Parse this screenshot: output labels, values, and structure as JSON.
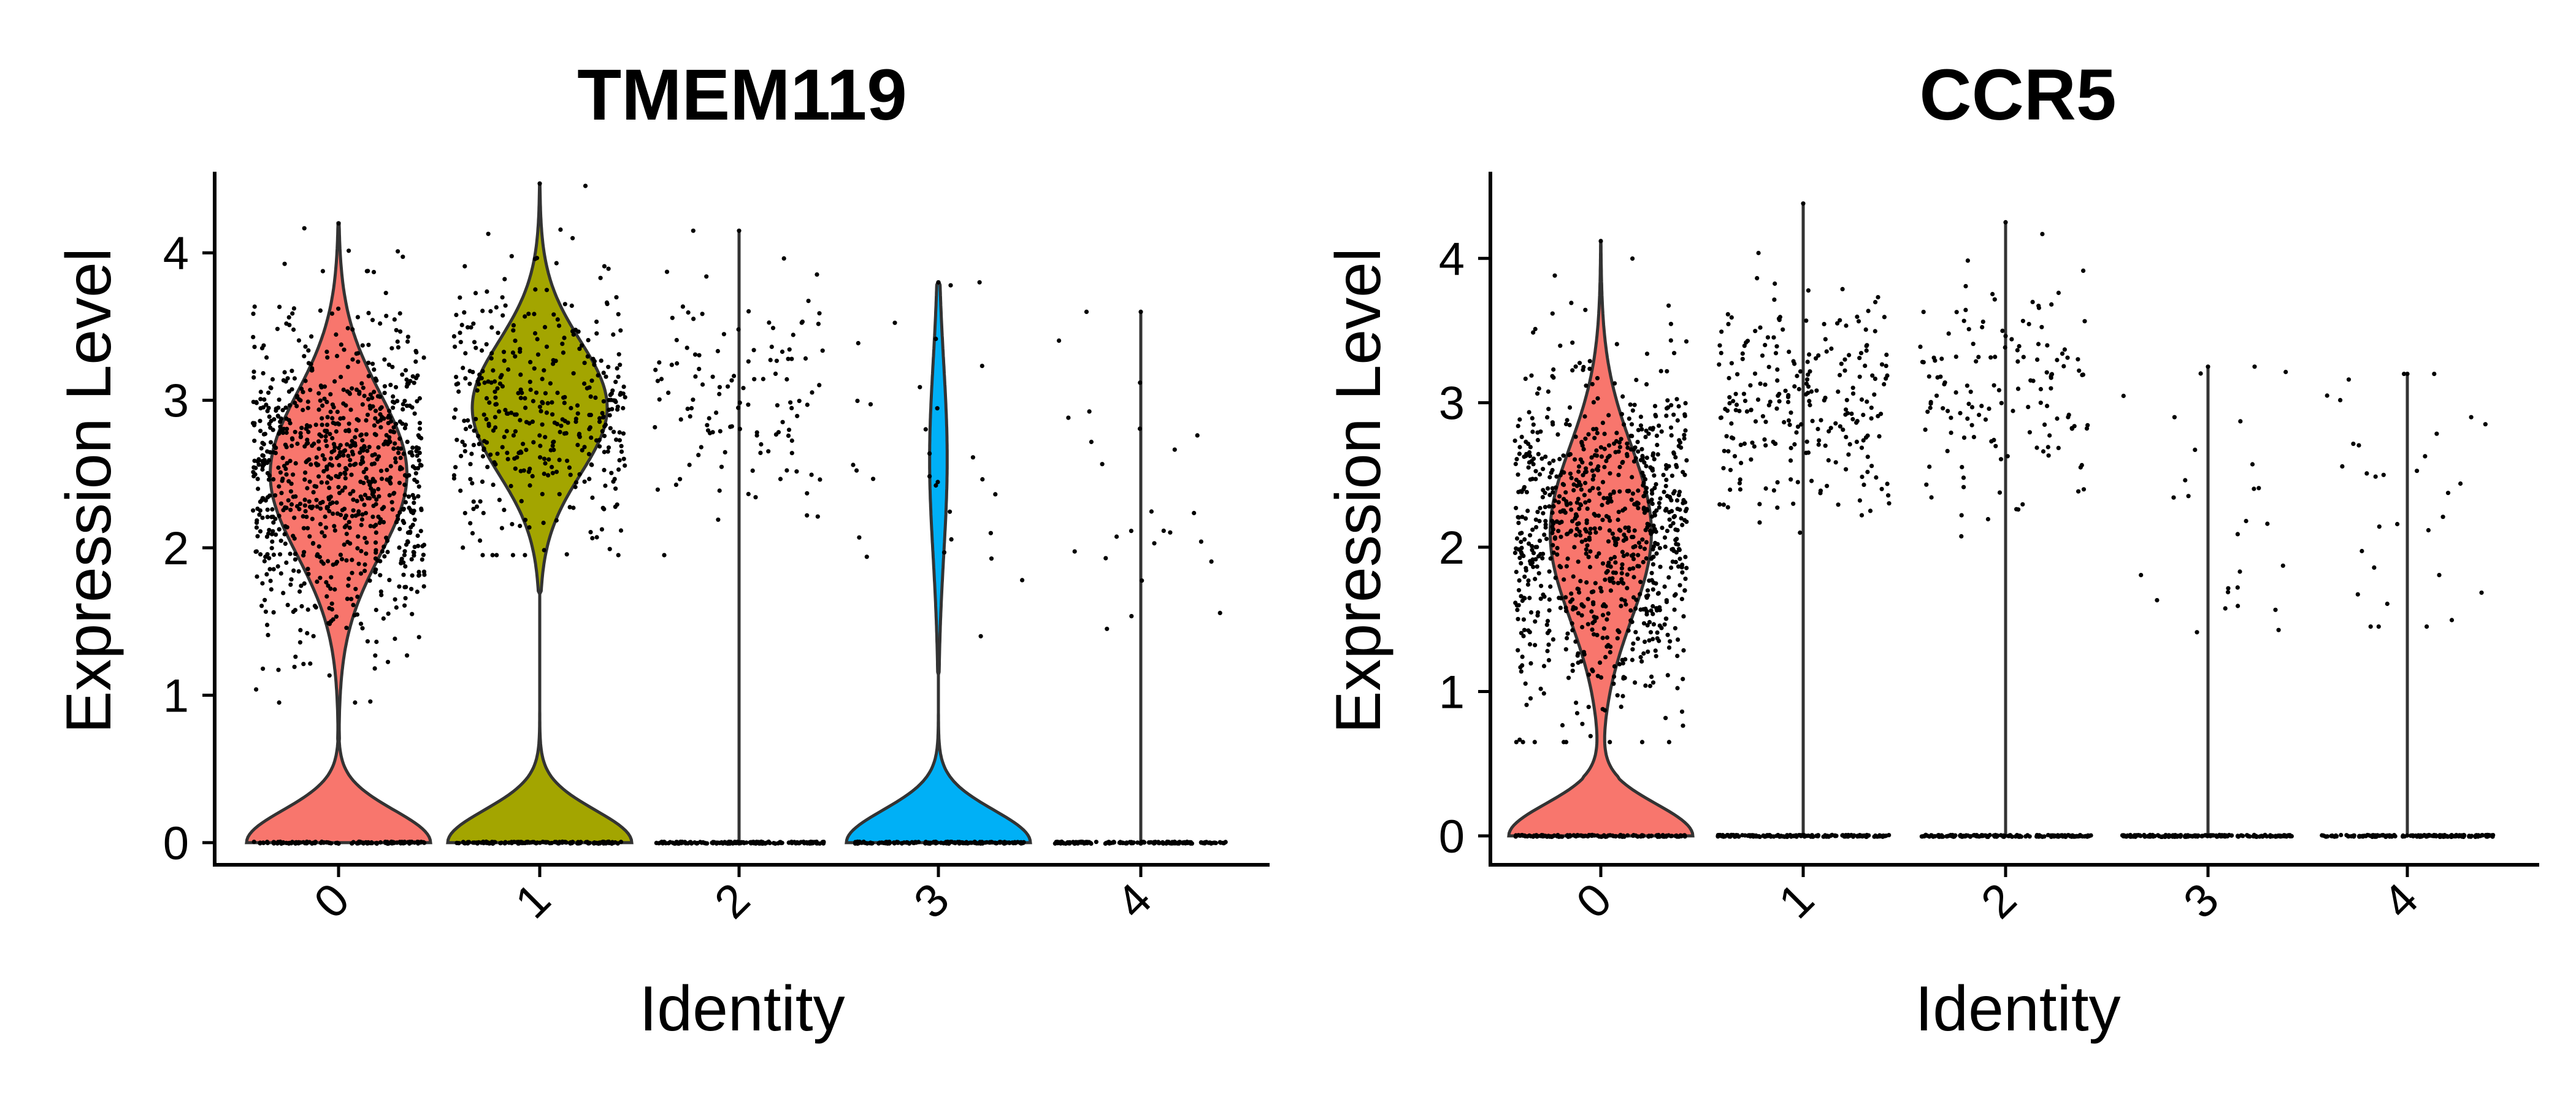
{
  "chart_data": [
    {
      "type": "violin",
      "title": "TMEM119",
      "xlabel": "Identity",
      "ylabel": "Expression Level",
      "categories": [
        "0",
        "1",
        "2",
        "3",
        "4"
      ],
      "ylim": [
        -0.15,
        4.55
      ],
      "yticks": [
        0,
        1,
        2,
        3,
        4
      ],
      "grid": false,
      "legend": "none",
      "colors": [
        "#F8766D",
        "#A3A500",
        null,
        "#00B0F6",
        null
      ],
      "groups": [
        {
          "category": "0",
          "max": 4.2,
          "zero_fraction": 0.35,
          "expr_center": 2.5,
          "expr_sd": 0.55,
          "expr_min": 0.95,
          "expr_max": 4.2,
          "n_expressing": 900
        },
        {
          "category": "1",
          "max": 4.47,
          "zero_fraction": 0.4,
          "expr_center": 2.95,
          "expr_sd": 0.45,
          "expr_min": 1.95,
          "expr_max": 4.47,
          "n_expressing": 400
        },
        {
          "category": "2",
          "max": 4.15,
          "zero_fraction": 0.88,
          "expr_center": 3.1,
          "expr_sd": 0.45,
          "expr_min": 1.95,
          "expr_max": 4.15,
          "n_expressing": 120
        },
        {
          "category": "3",
          "max": 3.8,
          "zero_fraction": 0.78,
          "expr_center": 2.6,
          "expr_sd": 0.65,
          "expr_min": 1.4,
          "expr_max": 3.8,
          "n_expressing": 30
        },
        {
          "category": "4",
          "max": 3.6,
          "zero_fraction": 0.96,
          "expr_center": 2.3,
          "expr_sd": 0.7,
          "expr_min": 1.45,
          "expr_max": 3.6,
          "n_expressing": 25
        }
      ]
    },
    {
      "type": "violin",
      "title": "CCR5",
      "xlabel": "Identity",
      "ylabel": "Expression Level",
      "categories": [
        "0",
        "1",
        "2",
        "3",
        "4"
      ],
      "ylim": [
        -0.2,
        4.6
      ],
      "yticks": [
        0,
        1,
        2,
        3,
        4
      ],
      "grid": false,
      "legend": "none",
      "colors": [
        "#F8766D",
        null,
        null,
        null,
        null
      ],
      "groups": [
        {
          "category": "0",
          "max": 4.12,
          "zero_fraction": 0.4,
          "expr_center": 2.1,
          "expr_sd": 0.6,
          "expr_min": 0.65,
          "expr_max": 4.12,
          "n_expressing": 900
        },
        {
          "category": "1",
          "max": 4.38,
          "zero_fraction": 0.85,
          "expr_center": 3.0,
          "expr_sd": 0.4,
          "expr_min": 2.1,
          "expr_max": 4.38,
          "n_expressing": 240
        },
        {
          "category": "2",
          "max": 4.25,
          "zero_fraction": 0.9,
          "expr_center": 3.05,
          "expr_sd": 0.4,
          "expr_min": 2.05,
          "expr_max": 4.25,
          "n_expressing": 140
        },
        {
          "category": "3",
          "max": 3.25,
          "zero_fraction": 0.97,
          "expr_center": 2.2,
          "expr_sd": 0.65,
          "expr_min": 1.38,
          "expr_max": 3.25,
          "n_expressing": 28
        },
        {
          "category": "4",
          "max": 3.2,
          "zero_fraction": 0.96,
          "expr_center": 2.4,
          "expr_sd": 0.6,
          "expr_min": 1.45,
          "expr_max": 3.2,
          "n_expressing": 32
        }
      ]
    }
  ]
}
